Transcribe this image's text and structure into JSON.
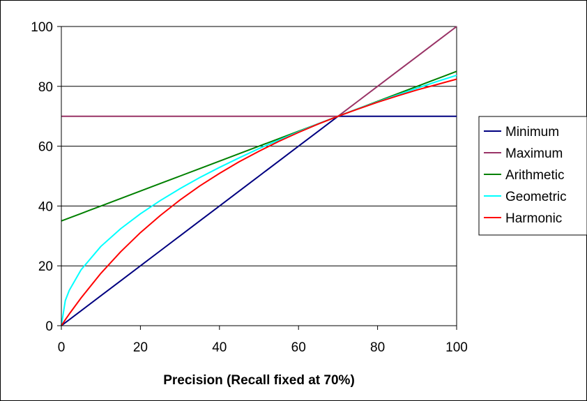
{
  "chart_data": {
    "type": "line",
    "title": "",
    "xlabel": "Precision (Recall fixed at 70%)",
    "ylabel": "",
    "xlim": [
      0,
      100
    ],
    "ylim": [
      0,
      100
    ],
    "xticks": [
      0,
      20,
      40,
      60,
      80,
      100
    ],
    "yticks": [
      0,
      20,
      40,
      60,
      80,
      100
    ],
    "grid": "horizontal",
    "legend_position": "right",
    "x": [
      0,
      1,
      2,
      5,
      10,
      15,
      20,
      25,
      30,
      35,
      40,
      45,
      50,
      55,
      60,
      65,
      70,
      75,
      80,
      85,
      90,
      95,
      100
    ],
    "series": [
      {
        "name": "Minimum",
        "color": "#000080",
        "values": [
          0,
          1,
          2,
          5,
          10,
          15,
          20,
          25,
          30,
          35,
          40,
          45,
          50,
          55,
          60,
          65,
          70,
          70,
          70,
          70,
          70,
          70,
          70
        ]
      },
      {
        "name": "Maximum",
        "color": "#993366",
        "values": [
          70,
          70,
          70,
          70,
          70,
          70,
          70,
          70,
          70,
          70,
          70,
          70,
          70,
          70,
          70,
          70,
          70,
          75,
          80,
          85,
          90,
          95,
          100
        ]
      },
      {
        "name": "Arithmetic",
        "color": "#008000",
        "values": [
          35,
          35.5,
          36,
          37.5,
          40,
          42.5,
          45,
          47.5,
          50,
          52.5,
          55,
          57.5,
          60,
          62.5,
          65,
          67.5,
          70,
          72.5,
          75,
          77.5,
          80,
          82.5,
          85
        ]
      },
      {
        "name": "Geometric",
        "color": "#00FFFF",
        "values": [
          0,
          8.4,
          11.8,
          18.7,
          26.5,
          32.4,
          37.4,
          41.8,
          45.8,
          49.5,
          52.9,
          56.1,
          59.2,
          62.0,
          64.8,
          67.5,
          70,
          72.5,
          74.8,
          77.1,
          79.4,
          81.6,
          83.7
        ]
      },
      {
        "name": "Harmonic",
        "color": "#FF0000",
        "values": [
          0,
          2.0,
          3.9,
          9.3,
          17.5,
          24.7,
          31.1,
          36.8,
          42.0,
          46.7,
          50.9,
          54.8,
          58.3,
          61.6,
          64.6,
          67.4,
          70,
          72.4,
          74.7,
          76.8,
          78.8,
          80.6,
          82.4
        ]
      }
    ]
  }
}
